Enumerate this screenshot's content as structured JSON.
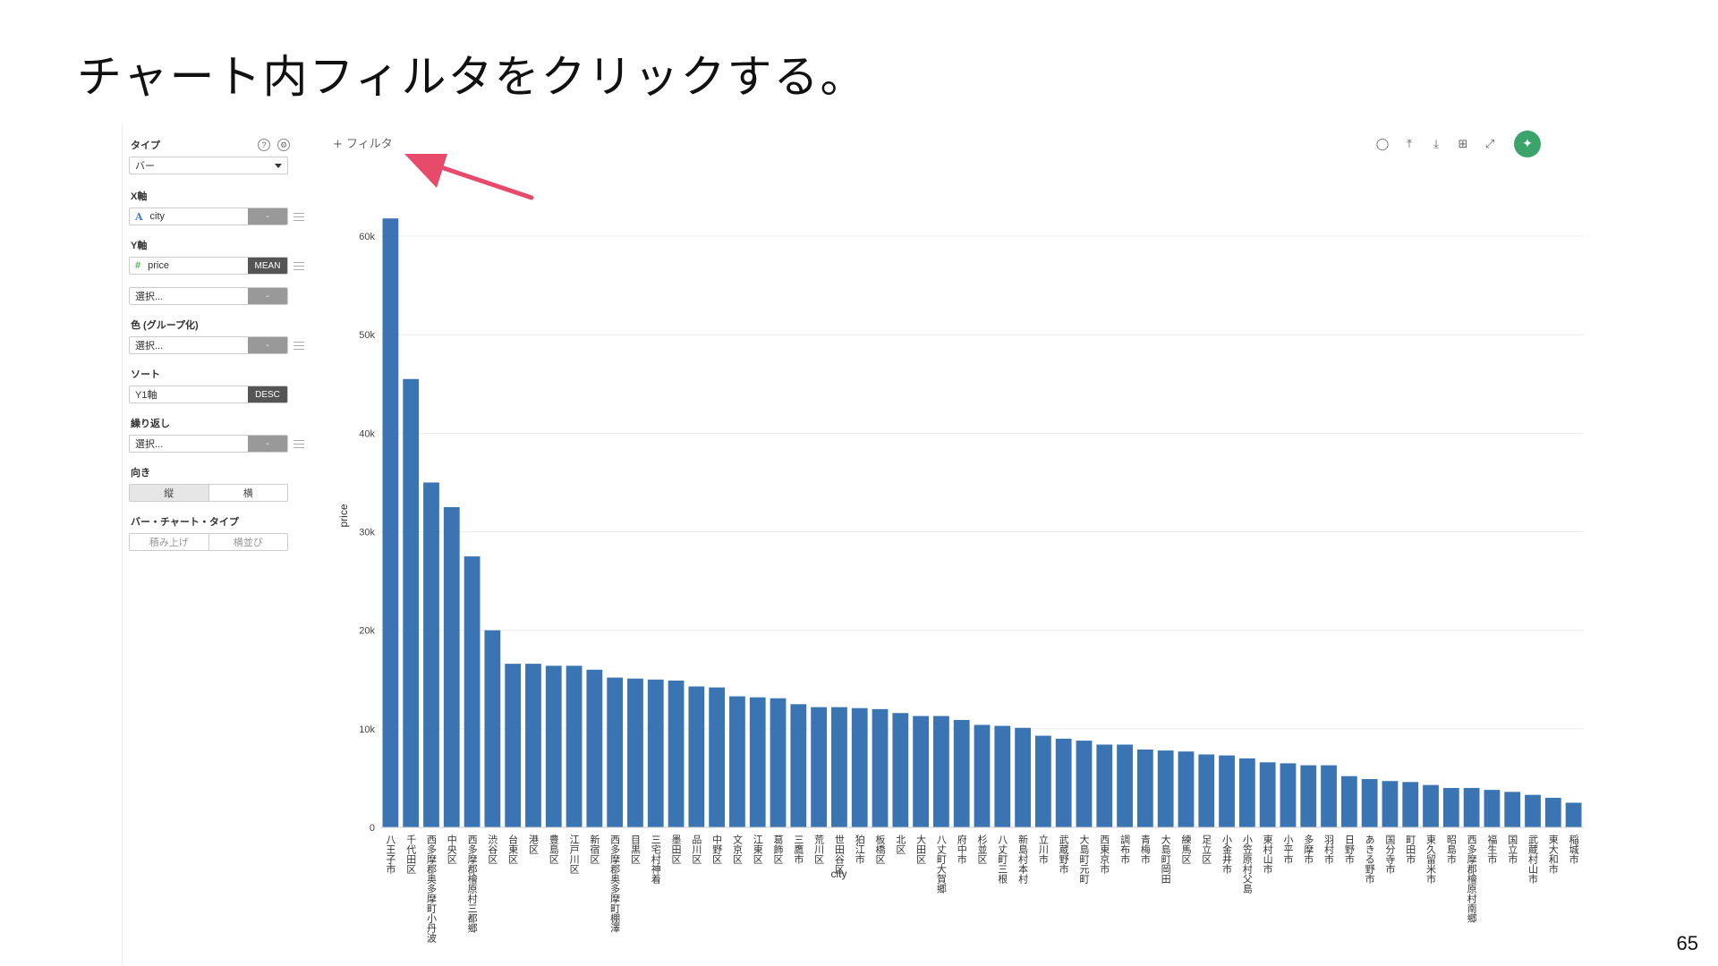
{
  "slide": {
    "title": "チャート内フィルタをクリックする。",
    "page_number": "65"
  },
  "panel": {
    "type_label": "タイプ",
    "type_value": "バー",
    "x_axis_label": "X軸",
    "x_axis_field": "city",
    "x_axis_tag": "-",
    "y_axis_label": "Y軸",
    "y_axis_field": "price",
    "y_axis_agg": "MEAN",
    "y2_placeholder": "選択...",
    "y2_tag": "-",
    "color_label": "色 (グループ化)",
    "color_placeholder": "選択...",
    "color_tag": "-",
    "sort_label": "ソート",
    "sort_field": "Y1軸",
    "sort_order": "DESC",
    "repeat_label": "繰り返し",
    "repeat_placeholder": "選択...",
    "repeat_tag": "-",
    "orientation_label": "向き",
    "orientation_vertical": "縦",
    "orientation_horizontal": "横",
    "bar_type_label": "バー・チャート・タイプ",
    "bar_type_stacked": "積み上げ",
    "bar_type_grouped": "横並び"
  },
  "chart_header": {
    "filter_label": "+ フィルタ"
  },
  "toolbar": {
    "icons": [
      "comment-icon",
      "upload-icon",
      "download-icon",
      "table-icon",
      "expand-icon",
      "pin-icon"
    ]
  },
  "colors": {
    "bar": "#3b74b2",
    "arrow": "#e84a6b",
    "pin": "#3ba46b"
  },
  "chart_data": {
    "type": "bar",
    "xlabel": "city",
    "ylabel": "price",
    "ylim": [
      0,
      62000
    ],
    "yticks": [
      0,
      10000,
      20000,
      30000,
      40000,
      50000,
      60000
    ],
    "ytick_labels": [
      "0",
      "10k",
      "20k",
      "30k",
      "40k",
      "50k",
      "60k"
    ],
    "grid": true,
    "categories": [
      "八王子市",
      "千代田区",
      "西多摩郡奥多摩町小丹波",
      "中央区",
      "西多摩郡檜原村三都郷",
      "渋谷区",
      "台東区",
      "港区",
      "豊島区",
      "江戸川区",
      "新宿区",
      "西多摩郡奥多摩町棚澤",
      "目黒区",
      "三宅村神着",
      "墨田区",
      "品川区",
      "中野区",
      "文京区",
      "江東区",
      "葛飾区",
      "三鷹市",
      "荒川区",
      "世田谷区",
      "狛江市",
      "板橋区",
      "北区",
      "大田区",
      "八丈町大賀郷",
      "府中市",
      "杉並区",
      "八丈町三根",
      "新島村本村",
      "立川市",
      "武蔵野市",
      "大島町元町",
      "西東京市",
      "調布市",
      "青梅市",
      "大島町岡田",
      "練馬区",
      "足立区",
      "小金井市",
      "小笠原村父島",
      "東村山市",
      "小平市",
      "多摩市",
      "羽村市",
      "日野市",
      "あきる野市",
      "国分寺市",
      "町田市",
      "東久留米市",
      "昭島市",
      "西多摩郡檜原村南郷",
      "福生市",
      "国立市",
      "武蔵村山市",
      "東大和市",
      "稲城市"
    ],
    "values": [
      61800,
      45500,
      35000,
      32500,
      27500,
      20000,
      16600,
      16600,
      16400,
      16400,
      16000,
      15200,
      15100,
      15000,
      14900,
      14300,
      14200,
      13300,
      13200,
      13100,
      12500,
      12200,
      12200,
      12100,
      12000,
      11600,
      11300,
      11300,
      10900,
      10400,
      10300,
      10100,
      9300,
      9000,
      8800,
      8400,
      8400,
      7900,
      7800,
      7700,
      7400,
      7300,
      7000,
      6600,
      6500,
      6300,
      6300,
      5200,
      4900,
      4700,
      4600,
      4300,
      4000,
      4000,
      3800,
      3600,
      3300,
      3000,
      2500
    ]
  }
}
